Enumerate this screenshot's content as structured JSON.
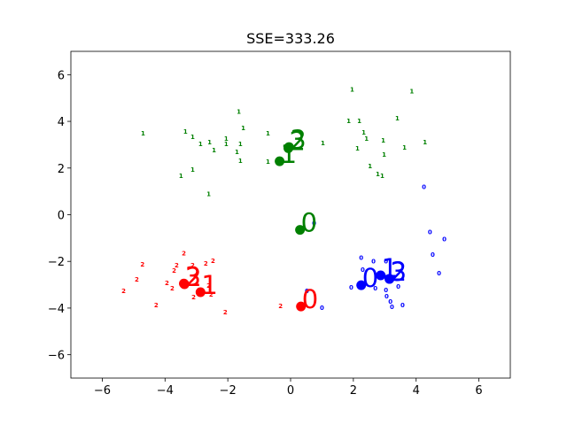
{
  "chart_data": {
    "type": "scatter",
    "title": "SSE=333.26",
    "xlim": [
      -7,
      7
    ],
    "ylim": [
      -7,
      7
    ],
    "xticks": [
      {
        "value": -6,
        "label": "−6"
      },
      {
        "value": -4,
        "label": "−4"
      },
      {
        "value": -2,
        "label": "−2"
      },
      0,
      2,
      4,
      6
    ],
    "yticks": [
      {
        "value": -6,
        "label": "−6"
      },
      {
        "value": -4,
        "label": "−4"
      },
      {
        "value": -2,
        "label": "−2"
      },
      0,
      2,
      4,
      6
    ],
    "series": [
      {
        "label": "0",
        "color": "#0000ff",
        "x": [
          4.25,
          0.75,
          4.44,
          4.9,
          4.53,
          4.73,
          2.25,
          2.64,
          3.04,
          2.3,
          1.93,
          2.7,
          3.04,
          3.06,
          3.18,
          3.23,
          3.57,
          3.43,
          0.52,
          1.0
        ],
        "values": [
          1.22,
          -0.34,
          -0.73,
          -1.03,
          -1.68,
          -2.48,
          -1.83,
          -1.98,
          -1.98,
          -2.33,
          -3.09,
          -3.13,
          -3.21,
          -3.47,
          -3.7,
          -3.93,
          -3.85,
          -3.05,
          -3.24,
          -3.97
        ]
      },
      {
        "label": "1",
        "color": "#008000",
        "x": [
          -4.7,
          -3.35,
          -3.12,
          -2.87,
          -2.58,
          -2.44,
          -2.05,
          -2.05,
          -1.65,
          -1.51,
          -1.6,
          -1.71,
          -1.6,
          -2.61,
          -3.12,
          -3.49,
          -0.72,
          -0.72,
          1.03,
          1.96,
          1.85,
          2.19,
          2.33,
          2.42,
          2.13,
          2.95,
          2.53,
          2.78,
          2.92,
          2.98,
          3.4,
          3.86,
          3.63,
          4.28
        ],
        "values": [
          3.51,
          3.59,
          3.36,
          3.05,
          3.13,
          2.79,
          3.28,
          3.05,
          4.43,
          3.74,
          3.05,
          2.71,
          2.33,
          0.92,
          1.95,
          1.68,
          3.51,
          2.29,
          3.09,
          5.38,
          4.05,
          4.05,
          3.55,
          3.28,
          2.86,
          3.21,
          2.1,
          1.76,
          1.68,
          2.6,
          4.16,
          5.31,
          2.9,
          3.13
        ]
      },
      {
        "label": "2",
        "color": "#ff0000",
        "x": [
          -4.72,
          -3.4,
          -3.63,
          -3.71,
          -3.12,
          -2.7,
          -2.47,
          -3.94,
          -3.77,
          -5.32,
          -4.9,
          -4.28,
          -3.09,
          -2.61,
          -2.53,
          -2.08,
          -0.32
        ],
        "values": [
          -2.1,
          -1.64,
          -2.14,
          -2.37,
          -2.14,
          -2.06,
          -1.95,
          -2.9,
          -3.13,
          -3.24,
          -2.75,
          -3.85,
          -3.51,
          -3.02,
          -3.4,
          -4.16,
          -3.89
        ]
      }
    ],
    "centroids": [
      {
        "color": "#008000",
        "x": [
          0.3,
          -0.35,
          -0.07,
          -0.05
        ],
        "values": [
          -0.65,
          2.29,
          2.85,
          2.9
        ],
        "labels": [
          "0",
          "1",
          "2",
          "3"
        ]
      },
      {
        "color": "#ff0000",
        "x": [
          0.33,
          -2.87,
          -3.38,
          -3.4
        ],
        "values": [
          -3.93,
          -3.32,
          -2.98,
          -2.95
        ],
        "labels": [
          "0",
          "1",
          "2",
          "3"
        ]
      },
      {
        "color": "#0000ff",
        "x": [
          2.25,
          2.87,
          3.15,
          3.15
        ],
        "values": [
          -3.02,
          -2.6,
          -2.75,
          -2.75
        ],
        "labels": [
          "0",
          "1",
          "2",
          "3"
        ]
      }
    ]
  }
}
